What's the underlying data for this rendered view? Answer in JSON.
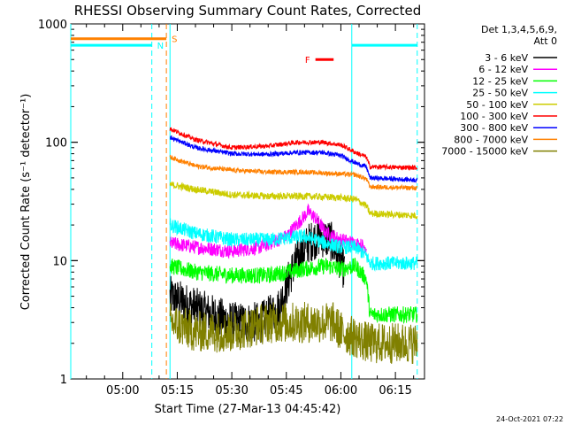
{
  "chart_data": {
    "type": "line",
    "title": "RHESSI Observing Summary Count Rates, Corrected",
    "xlabel": "Start Time (27-Mar-13 04:45:42)",
    "ylabel": "Corrected Count Rate (s⁻¹ detector⁻¹)",
    "yscale": "log",
    "ylim": [
      1,
      1000
    ],
    "xlim": [
      "04:45:42",
      "06:23:00"
    ],
    "x_ticks": [
      "05:00",
      "05:15",
      "05:30",
      "05:45",
      "06:00",
      "06:15"
    ],
    "y_ticks": [
      "1",
      "10",
      "100",
      "1000"
    ],
    "legend_header": [
      "Det 1,3,4,5,6,9,",
      "Att 0"
    ],
    "legend_position": "right",
    "timestamp": "24-Oct-2021 07:22",
    "data_start": "05:13",
    "data_end": "06:21",
    "series": [
      {
        "name": "3 - 6 keV",
        "color": "#000000",
        "points": [
          [
            "05:13",
            5.0
          ],
          [
            "05:20",
            4.0
          ],
          [
            "05:30",
            3.0
          ],
          [
            "05:38",
            3.0
          ],
          [
            "05:43",
            4.0
          ],
          [
            "05:47",
            9.0
          ],
          [
            "05:51",
            14.0
          ],
          [
            "05:54",
            16.0
          ],
          [
            "05:57",
            15.0
          ],
          [
            "06:00",
            10.0
          ],
          [
            "06:01",
            8.0
          ]
        ]
      },
      {
        "name": "6 - 12 keV",
        "color": "#ff00ff",
        "points": [
          [
            "05:13",
            14.0
          ],
          [
            "05:20",
            13.0
          ],
          [
            "05:30",
            12.0
          ],
          [
            "05:38",
            13.0
          ],
          [
            "05:45",
            16.0
          ],
          [
            "05:49",
            22.0
          ],
          [
            "05:51",
            26.0
          ],
          [
            "05:53",
            23.0
          ],
          [
            "05:56",
            17.0
          ],
          [
            "06:00",
            15.0
          ],
          [
            "06:04",
            14.0
          ],
          [
            "06:07",
            13.0
          ]
        ]
      },
      {
        "name": "12 - 25 keV",
        "color": "#00ff00",
        "points": [
          [
            "05:13",
            9.0
          ],
          [
            "05:20",
            8.0
          ],
          [
            "05:30",
            7.5
          ],
          [
            "05:40",
            7.5
          ],
          [
            "05:50",
            8.5
          ],
          [
            "05:56",
            9.0
          ],
          [
            "06:00",
            8.5
          ],
          [
            "06:04",
            9.0
          ],
          [
            "06:07",
            7.0
          ],
          [
            "06:08",
            3.5
          ],
          [
            "06:21",
            3.5
          ]
        ]
      },
      {
        "name": "25 - 50 keV",
        "color": "#00ffff",
        "points": [
          [
            "05:13",
            20.0
          ],
          [
            "05:20",
            17.0
          ],
          [
            "05:30",
            15.0
          ],
          [
            "05:40",
            15.0
          ],
          [
            "05:50",
            16.0
          ],
          [
            "05:56",
            14.0
          ],
          [
            "06:00",
            13.0
          ],
          [
            "06:04",
            13.0
          ],
          [
            "06:07",
            11.0
          ],
          [
            "06:08",
            9.5
          ],
          [
            "06:21",
            9.5
          ]
        ]
      },
      {
        "name": "50 - 100 keV",
        "color": "#cccc00",
        "points": [
          [
            "05:13",
            44.0
          ],
          [
            "05:20",
            40.0
          ],
          [
            "05:30",
            36.0
          ],
          [
            "05:40",
            35.0
          ],
          [
            "05:50",
            35.0
          ],
          [
            "06:00",
            34.0
          ],
          [
            "06:04",
            33.0
          ],
          [
            "06:07",
            29.0
          ],
          [
            "06:08",
            25.0
          ],
          [
            "06:21",
            24.0
          ]
        ]
      },
      {
        "name": "100 - 300 keV",
        "color": "#ff0000",
        "points": [
          [
            "05:13",
            130.0
          ],
          [
            "05:20",
            105.0
          ],
          [
            "05:30",
            90.0
          ],
          [
            "05:40",
            93.0
          ],
          [
            "05:48",
            100.0
          ],
          [
            "05:55",
            100.0
          ],
          [
            "06:00",
            95.0
          ],
          [
            "06:04",
            82.0
          ],
          [
            "06:07",
            75.0
          ],
          [
            "06:08",
            62.0
          ],
          [
            "06:21",
            61.0
          ]
        ]
      },
      {
        "name": "300 - 800 keV",
        "color": "#0000ff",
        "points": [
          [
            "05:13",
            110.0
          ],
          [
            "05:20",
            90.0
          ],
          [
            "05:30",
            80.0
          ],
          [
            "05:40",
            79.0
          ],
          [
            "05:48",
            82.0
          ],
          [
            "05:55",
            82.0
          ],
          [
            "06:00",
            77.0
          ],
          [
            "06:04",
            67.0
          ],
          [
            "06:07",
            62.0
          ],
          [
            "06:08",
            50.0
          ],
          [
            "06:21",
            48.0
          ]
        ]
      },
      {
        "name": "800 - 7000 keV",
        "color": "#ff8000",
        "points": [
          [
            "05:13",
            75.0
          ],
          [
            "05:20",
            63.0
          ],
          [
            "05:30",
            58.0
          ],
          [
            "05:40",
            56.0
          ],
          [
            "05:50",
            56.0
          ],
          [
            "06:00",
            54.0
          ],
          [
            "06:04",
            53.0
          ],
          [
            "06:07",
            49.0
          ],
          [
            "06:08",
            42.0
          ],
          [
            "06:21",
            41.0
          ]
        ]
      },
      {
        "name": "7000 - 15000 keV",
        "color": "#808000",
        "points": [
          [
            "05:13",
            3.0
          ],
          [
            "05:20",
            2.5
          ],
          [
            "05:30",
            2.5
          ],
          [
            "05:40",
            3.0
          ],
          [
            "05:50",
            3.0
          ],
          [
            "05:58",
            3.0
          ],
          [
            "06:00",
            2.5
          ],
          [
            "06:08",
            2.0
          ],
          [
            "06:21",
            2.0
          ]
        ]
      }
    ],
    "flags": [
      {
        "label": "N",
        "color": "#00ffff",
        "y": 660,
        "ranges": [
          [
            "04:45:42",
            "05:08:00"
          ],
          [
            "06:03:00",
            "06:21:00"
          ]
        ]
      },
      {
        "label": "S",
        "color": "#ff8000",
        "y": 750,
        "ranges": [
          [
            "04:45:42",
            "05:12:00"
          ]
        ]
      },
      {
        "label": "F",
        "color": "#ff0000",
        "y": 500,
        "ranges": [
          [
            "05:53:00",
            "05:58:00"
          ]
        ]
      }
    ],
    "vlines": [
      {
        "time": "04:45:42",
        "color": "#00ffff",
        "style": "solid"
      },
      {
        "time": "05:08",
        "color": "#00ffff",
        "style": "dashed"
      },
      {
        "time": "05:12",
        "color": "#ff8000",
        "style": "dashed"
      },
      {
        "time": "05:13",
        "color": "#00ffff",
        "style": "solid"
      },
      {
        "time": "06:03",
        "color": "#00ffff",
        "style": "solid"
      },
      {
        "time": "06:21",
        "color": "#00ffff",
        "style": "dashed"
      }
    ]
  }
}
